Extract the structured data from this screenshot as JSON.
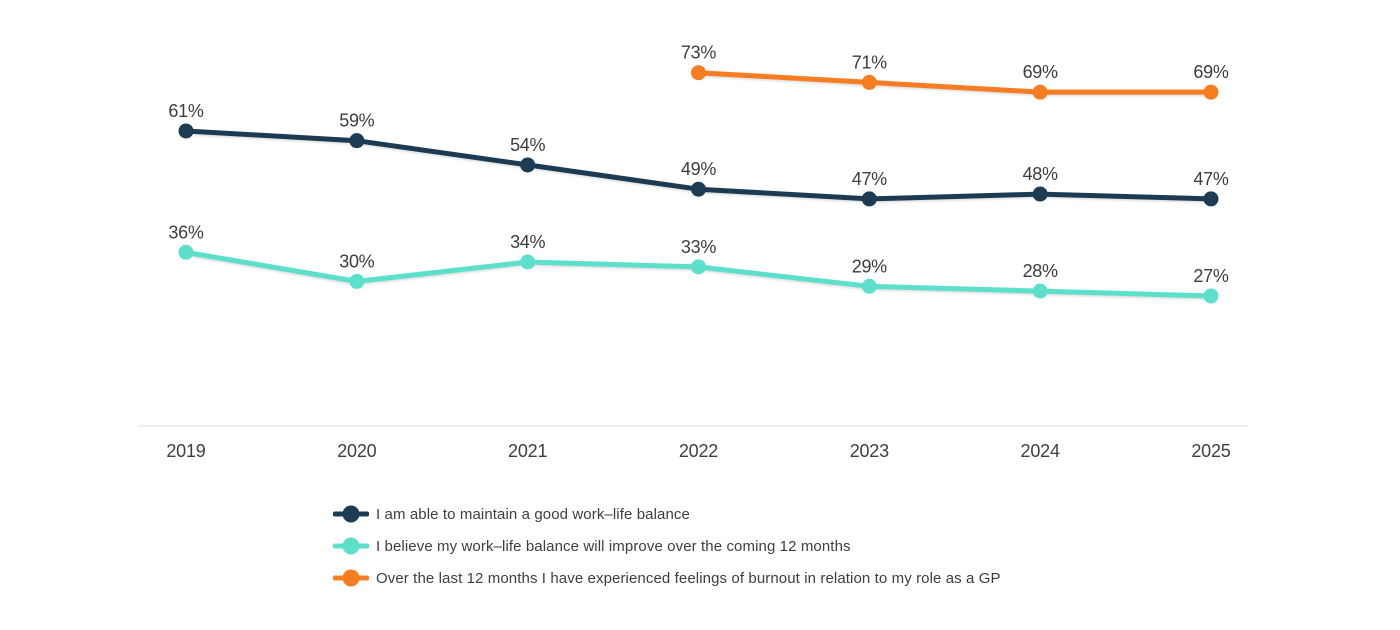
{
  "chart_data": {
    "type": "line",
    "x": [
      "2019",
      "2020",
      "2021",
      "2022",
      "2023",
      "2024",
      "2025"
    ],
    "series": [
      {
        "name": "I am able to maintain a good work–life balance",
        "color": "#1d3b52",
        "values": [
          61,
          59,
          54,
          49,
          47,
          48,
          47
        ]
      },
      {
        "name": "I believe my work–life balance will improve over the coming 12 months",
        "color": "#5ce0cc",
        "values": [
          36,
          30,
          34,
          33,
          29,
          28,
          27
        ]
      },
      {
        "name": "Over the last 12 months I have experienced feelings of burnout in relation to my role as a GP",
        "color": "#f67d20",
        "values": [
          null,
          null,
          null,
          73,
          71,
          69,
          69
        ]
      }
    ],
    "value_suffix": "%",
    "data_labels": true,
    "grid": "off",
    "y_axis_visible": false,
    "ylim": [
      0,
      88
    ],
    "legend_position": "bottom-left",
    "axis_line_color": "#dcdcdc",
    "label_color": "#3d3d3d"
  }
}
